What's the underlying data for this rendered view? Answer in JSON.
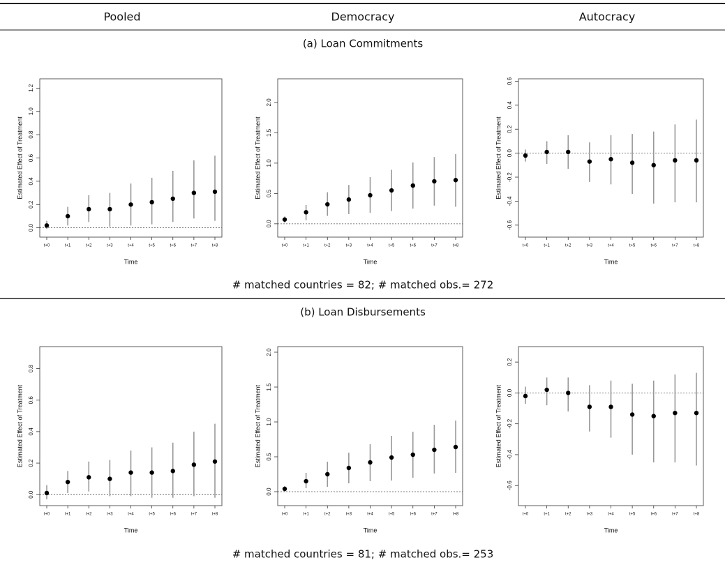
{
  "header": {
    "columns": [
      "Pooled",
      "Democracy",
      "Autocracy"
    ]
  },
  "panels": [
    {
      "title": "(a) Loan Commitments",
      "note": "# matched countries = 82; # matched obs.= 272"
    },
    {
      "title": "(b) Loan Disbursements",
      "note": "# matched countries = 81; # matched obs.= 253"
    }
  ],
  "chart_data": [
    {
      "type": "errorbar",
      "x_label": "Time",
      "y_label": "Estimated Effect of Treatment",
      "categories": [
        "t+0",
        "t+1",
        "t+2",
        "t+3",
        "t+4",
        "t+5",
        "t+6",
        "t+7",
        "t+8"
      ],
      "series": [
        {
          "color": "#000000",
          "values": [
            0.02,
            0.1,
            0.16,
            0.16,
            0.2,
            0.22,
            0.25,
            0.3,
            0.31
          ],
          "lower": [
            -0.01,
            0.02,
            0.05,
            0.01,
            0.02,
            0.03,
            0.05,
            0.08,
            0.06
          ],
          "upper": [
            0.06,
            0.18,
            0.28,
            0.3,
            0.38,
            0.43,
            0.49,
            0.58,
            0.62
          ]
        }
      ],
      "ylim": [
        -0.08,
        1.28
      ],
      "yticks": [
        {
          "value": 0,
          "label": "0.0"
        },
        0.2,
        0.4,
        0.6,
        0.8,
        {
          "value": 1,
          "label": "1.0"
        },
        1.2
      ],
      "reference_line": 0
    },
    {
      "type": "errorbar",
      "x_label": "Time",
      "y_label": "Estimated Effect of Treatment",
      "categories": [
        "t+0",
        "t+1",
        "t+2",
        "t+3",
        "t+4",
        "t+5",
        "t+6",
        "t+7",
        "t+8"
      ],
      "series": [
        {
          "color": "#000000",
          "values": [
            0.07,
            0.19,
            0.32,
            0.4,
            0.47,
            0.55,
            0.63,
            0.7,
            0.72
          ],
          "lower": [
            0.02,
            0.06,
            0.13,
            0.16,
            0.18,
            0.21,
            0.25,
            0.3,
            0.28
          ],
          "upper": [
            0.12,
            0.31,
            0.52,
            0.64,
            0.77,
            0.89,
            1.01,
            1.1,
            1.15
          ]
        }
      ],
      "ylim": [
        -0.22,
        2.39
      ],
      "yticks": [
        {
          "value": 0,
          "label": "0.0"
        },
        0.5,
        {
          "value": 1,
          "label": "1.0"
        },
        1.5,
        {
          "value": 2,
          "label": "2.0"
        }
      ],
      "reference_line": 0
    },
    {
      "type": "errorbar",
      "x_label": "Time",
      "y_label": "Estimated Effect of Treatment",
      "categories": [
        "t+0",
        "t+1",
        "t+2",
        "t+3",
        "t+4",
        "t+5",
        "t+6",
        "t+7",
        "t+8"
      ],
      "series": [
        {
          "color": "#000000",
          "values": [
            -0.02,
            0.01,
            0.01,
            -0.07,
            -0.05,
            -0.08,
            -0.1,
            -0.06,
            -0.06
          ],
          "lower": [
            -0.07,
            -0.09,
            -0.13,
            -0.24,
            -0.26,
            -0.34,
            -0.42,
            -0.41,
            -0.41
          ],
          "upper": [
            0.03,
            0.1,
            0.15,
            0.09,
            0.15,
            0.16,
            0.18,
            0.24,
            0.28
          ]
        }
      ],
      "ylim": [
        -0.7,
        0.62
      ],
      "yticks": [
        -0.6,
        -0.4,
        -0.2,
        {
          "value": 0,
          "label": "0.0"
        },
        0.2,
        0.4,
        0.6
      ],
      "reference_line": 0
    },
    {
      "type": "errorbar",
      "x_label": "Time",
      "y_label": "Estimated Effect of Treatment",
      "categories": [
        "t+0",
        "t+1",
        "t+2",
        "t+3",
        "t+4",
        "t+5",
        "t+6",
        "t+7",
        "t+8"
      ],
      "series": [
        {
          "color": "#000000",
          "values": [
            0.01,
            0.08,
            0.11,
            0.1,
            0.14,
            0.14,
            0.15,
            0.19,
            0.21
          ],
          "lower": [
            -0.03,
            0.01,
            0.02,
            -0.01,
            -0.01,
            -0.02,
            -0.02,
            -0.01,
            -0.02
          ],
          "upper": [
            0.06,
            0.15,
            0.21,
            0.22,
            0.28,
            0.3,
            0.33,
            0.4,
            0.45
          ]
        }
      ],
      "ylim": [
        -0.07,
        0.94
      ],
      "yticks": [
        {
          "value": 0,
          "label": "0.0"
        },
        0.2,
        0.4,
        0.6,
        0.8
      ],
      "reference_line": 0
    },
    {
      "type": "errorbar",
      "x_label": "Time",
      "y_label": "Estimated Effect of Treatment",
      "categories": [
        "t+0",
        "t+1",
        "t+2",
        "t+3",
        "t+4",
        "t+5",
        "t+6",
        "t+7",
        "t+8"
      ],
      "series": [
        {
          "color": "#000000",
          "values": [
            0.04,
            0.15,
            0.25,
            0.34,
            0.42,
            0.49,
            0.53,
            0.6,
            0.64
          ],
          "lower": [
            0,
            0.05,
            0.07,
            0.12,
            0.15,
            0.16,
            0.2,
            0.26,
            0.27
          ],
          "upper": [
            0.08,
            0.27,
            0.43,
            0.56,
            0.68,
            0.8,
            0.86,
            0.96,
            1.02
          ]
        }
      ],
      "ylim": [
        -0.2,
        2.08
      ],
      "yticks": [
        {
          "value": 0,
          "label": "0.0"
        },
        0.5,
        {
          "value": 1,
          "label": "1.0"
        },
        1.5,
        {
          "value": 2,
          "label": "2.0"
        }
      ],
      "reference_line": 0
    },
    {
      "type": "errorbar",
      "x_label": "Time",
      "y_label": "Estimated Effect of Treatment",
      "categories": [
        "t+0",
        "t+1",
        "t+2",
        "t+3",
        "t+4",
        "t+5",
        "t+6",
        "t+7",
        "t+8"
      ],
      "series": [
        {
          "color": "#000000",
          "values": [
            -0.02,
            0.02,
            0,
            -0.09,
            -0.09,
            -0.14,
            -0.15,
            -0.13,
            -0.13
          ],
          "lower": [
            -0.07,
            -0.08,
            -0.12,
            -0.25,
            -0.29,
            -0.4,
            -0.45,
            -0.45,
            -0.47
          ],
          "upper": [
            0.04,
            0.1,
            0.1,
            0.05,
            0.08,
            0.06,
            0.08,
            0.12,
            0.13
          ]
        }
      ],
      "ylim": [
        -0.73,
        0.3
      ],
      "yticks": [
        -0.6,
        -0.4,
        -0.2,
        {
          "value": 0,
          "label": "0.0"
        },
        0.2
      ],
      "reference_line": 0
    }
  ]
}
